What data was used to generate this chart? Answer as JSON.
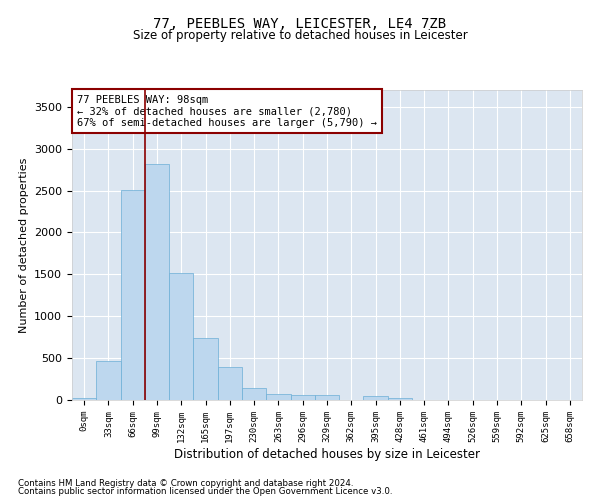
{
  "title1": "77, PEEBLES WAY, LEICESTER, LE4 7ZB",
  "title2": "Size of property relative to detached houses in Leicester",
  "xlabel": "Distribution of detached houses by size in Leicester",
  "ylabel": "Number of detached properties",
  "footnote1": "Contains HM Land Registry data © Crown copyright and database right 2024.",
  "footnote2": "Contains public sector information licensed under the Open Government Licence v3.0.",
  "bar_color": "#bdd7ee",
  "bar_edgecolor": "#6baed6",
  "background_color": "#dce6f1",
  "grid_color": "#ffffff",
  "annotation_text": "77 PEEBLES WAY: 98sqm\n← 32% of detached houses are smaller (2,780)\n67% of semi-detached houses are larger (5,790) →",
  "vline_x": 2.5,
  "vline_color": "#8b0000",
  "annotation_box_edgecolor": "#8b0000",
  "bin_labels": [
    "0sqm",
    "33sqm",
    "66sqm",
    "99sqm",
    "132sqm",
    "165sqm",
    "197sqm",
    "230sqm",
    "263sqm",
    "296sqm",
    "329sqm",
    "362sqm",
    "395sqm",
    "428sqm",
    "461sqm",
    "494sqm",
    "526sqm",
    "559sqm",
    "592sqm",
    "625sqm",
    "658sqm"
  ],
  "bar_heights": [
    25,
    470,
    2510,
    2820,
    1520,
    745,
    390,
    140,
    75,
    55,
    55,
    0,
    50,
    25,
    0,
    0,
    0,
    0,
    0,
    0,
    0
  ],
  "ylim": [
    0,
    3700
  ],
  "xlim": [
    -0.5,
    20.5
  ],
  "yticks": [
    0,
    500,
    1000,
    1500,
    2000,
    2500,
    3000,
    3500
  ]
}
